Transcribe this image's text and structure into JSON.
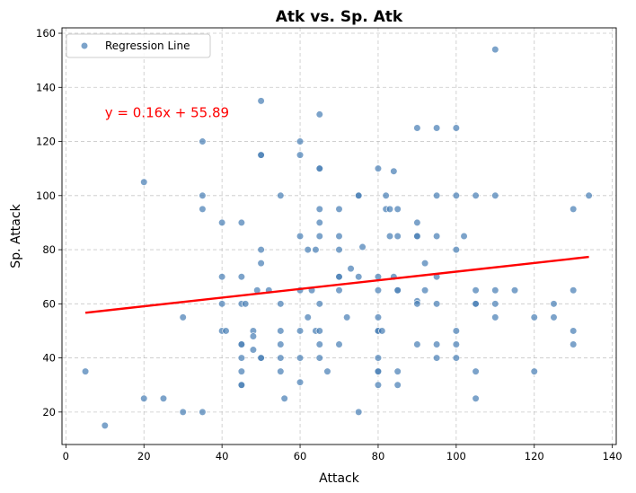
{
  "chart_data": {
    "type": "scatter",
    "title": "Atk vs. Sp. Atk",
    "xlabel": "Attack",
    "ylabel": "Sp. Attack",
    "xlim": [
      -1,
      141
    ],
    "ylim": [
      8,
      162
    ],
    "xticks": [
      0,
      20,
      40,
      60,
      80,
      100,
      120,
      140
    ],
    "yticks": [
      20,
      40,
      60,
      80,
      100,
      120,
      140,
      160
    ],
    "grid": true,
    "legend": {
      "placement": "top-left",
      "entries": [
        "Regression Line"
      ]
    },
    "annotation": {
      "text": "y = 0.16x + 55.89",
      "x": 10,
      "y": 129,
      "color": "#ff0000"
    },
    "regression": {
      "slope": 0.16,
      "intercept": 55.89,
      "x_range": [
        5,
        134
      ],
      "color": "#ff0000"
    },
    "marker_color": "#4a7fb5",
    "series": [
      {
        "name": "Regression Line",
        "points": [
          [
            5,
            35
          ],
          [
            10,
            15
          ],
          [
            20,
            105
          ],
          [
            20,
            25
          ],
          [
            25,
            25
          ],
          [
            30,
            55
          ],
          [
            30,
            20
          ],
          [
            35,
            120
          ],
          [
            35,
            100
          ],
          [
            35,
            95
          ],
          [
            35,
            20
          ],
          [
            40,
            90
          ],
          [
            40,
            70
          ],
          [
            40,
            60
          ],
          [
            40,
            50
          ],
          [
            41,
            50
          ],
          [
            45,
            90
          ],
          [
            45,
            70
          ],
          [
            45,
            60
          ],
          [
            45,
            45
          ],
          [
            45,
            45
          ],
          [
            45,
            40
          ],
          [
            45,
            35
          ],
          [
            45,
            30
          ],
          [
            45,
            30
          ],
          [
            46,
            60
          ],
          [
            48,
            50
          ],
          [
            48,
            48
          ],
          [
            48,
            43
          ],
          [
            49,
            65
          ],
          [
            50,
            135
          ],
          [
            50,
            115
          ],
          [
            50,
            115
          ],
          [
            50,
            80
          ],
          [
            50,
            75
          ],
          [
            50,
            40
          ],
          [
            50,
            40
          ],
          [
            52,
            65
          ],
          [
            55,
            100
          ],
          [
            55,
            60
          ],
          [
            55,
            50
          ],
          [
            55,
            45
          ],
          [
            55,
            40
          ],
          [
            55,
            35
          ],
          [
            56,
            25
          ],
          [
            60,
            120
          ],
          [
            60,
            115
          ],
          [
            60,
            85
          ],
          [
            60,
            65
          ],
          [
            60,
            50
          ],
          [
            60,
            40
          ],
          [
            60,
            31
          ],
          [
            62,
            80
          ],
          [
            62,
            55
          ],
          [
            63,
            65
          ],
          [
            64,
            80
          ],
          [
            64,
            50
          ],
          [
            65,
            130
          ],
          [
            65,
            110
          ],
          [
            65,
            110
          ],
          [
            65,
            95
          ],
          [
            65,
            90
          ],
          [
            65,
            85
          ],
          [
            65,
            60
          ],
          [
            65,
            50
          ],
          [
            65,
            45
          ],
          [
            65,
            40
          ],
          [
            67,
            35
          ],
          [
            70,
            95
          ],
          [
            70,
            85
          ],
          [
            70,
            80
          ],
          [
            70,
            70
          ],
          [
            70,
            70
          ],
          [
            70,
            65
          ],
          [
            70,
            45
          ],
          [
            72,
            55
          ],
          [
            73,
            73
          ],
          [
            75,
            100
          ],
          [
            75,
            100
          ],
          [
            75,
            70
          ],
          [
            75,
            20
          ],
          [
            76,
            81
          ],
          [
            80,
            110
          ],
          [
            80,
            70
          ],
          [
            80,
            65
          ],
          [
            80,
            55
          ],
          [
            80,
            50
          ],
          [
            80,
            50
          ],
          [
            80,
            40
          ],
          [
            80,
            35
          ],
          [
            80,
            35
          ],
          [
            80,
            30
          ],
          [
            81,
            50
          ],
          [
            82,
            100
          ],
          [
            82,
            95
          ],
          [
            83,
            95
          ],
          [
            83,
            85
          ],
          [
            84,
            109
          ],
          [
            84,
            70
          ],
          [
            85,
            95
          ],
          [
            85,
            85
          ],
          [
            85,
            65
          ],
          [
            85,
            65
          ],
          [
            85,
            35
          ],
          [
            85,
            30
          ],
          [
            90,
            125
          ],
          [
            90,
            90
          ],
          [
            90,
            85
          ],
          [
            90,
            85
          ],
          [
            90,
            61
          ],
          [
            90,
            60
          ],
          [
            90,
            45
          ],
          [
            92,
            75
          ],
          [
            92,
            65
          ],
          [
            95,
            125
          ],
          [
            95,
            100
          ],
          [
            95,
            85
          ],
          [
            95,
            70
          ],
          [
            95,
            60
          ],
          [
            95,
            45
          ],
          [
            95,
            40
          ],
          [
            100,
            125
          ],
          [
            100,
            100
          ],
          [
            100,
            80
          ],
          [
            100,
            50
          ],
          [
            100,
            45
          ],
          [
            100,
            40
          ],
          [
            102,
            85
          ],
          [
            105,
            100
          ],
          [
            105,
            65
          ],
          [
            105,
            60
          ],
          [
            105,
            60
          ],
          [
            105,
            35
          ],
          [
            105,
            25
          ],
          [
            110,
            154
          ],
          [
            110,
            100
          ],
          [
            110,
            65
          ],
          [
            110,
            60
          ],
          [
            110,
            55
          ],
          [
            115,
            65
          ],
          [
            120,
            55
          ],
          [
            120,
            35
          ],
          [
            125,
            60
          ],
          [
            125,
            55
          ],
          [
            130,
            95
          ],
          [
            130,
            65
          ],
          [
            130,
            50
          ],
          [
            130,
            45
          ],
          [
            134,
            100
          ]
        ]
      }
    ]
  }
}
